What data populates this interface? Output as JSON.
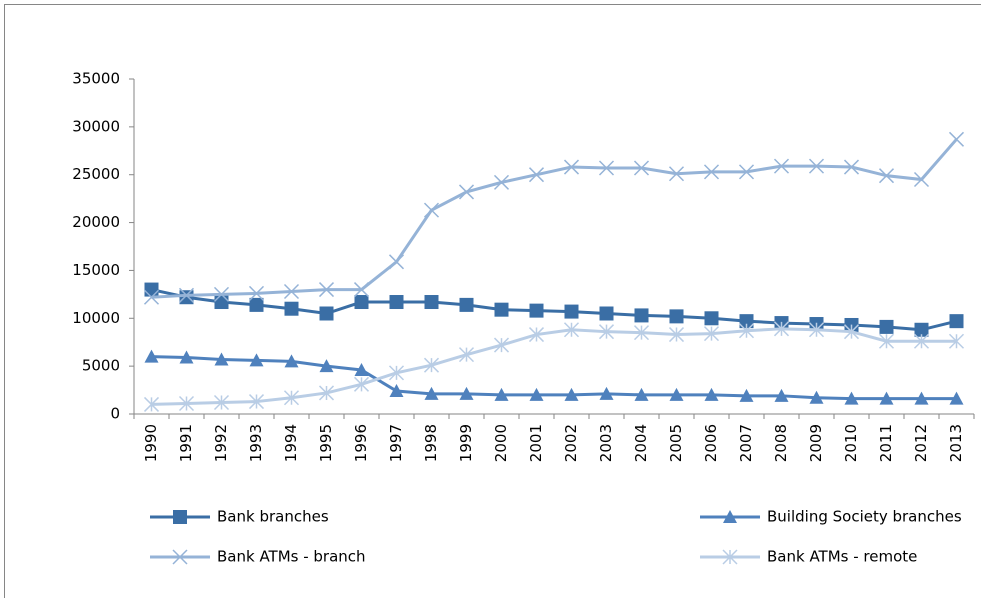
{
  "chart_data": {
    "type": "line",
    "categories": [
      "1990",
      "1991",
      "1992",
      "1993",
      "1994",
      "1995",
      "1996",
      "1997",
      "1998",
      "1999",
      "2000",
      "2001",
      "2002",
      "2003",
      "2004",
      "2005",
      "2006",
      "2007",
      "2008",
      "2009",
      "2010",
      "2011",
      "2012",
      "2013"
    ],
    "series": [
      {
        "name": "Bank branches",
        "color": "#3a6ea5",
        "marker": "square",
        "values": [
          13000,
          12200,
          11700,
          11400,
          11000,
          10500,
          11700,
          11700,
          11700,
          11400,
          10900,
          10800,
          10700,
          10500,
          10300,
          10200,
          10000,
          9700,
          9500,
          9400,
          9300,
          9100,
          8800,
          9700
        ]
      },
      {
        "name": "Building Society branches",
        "color": "#4f81bd",
        "marker": "triangle",
        "values": [
          6000,
          5900,
          5700,
          5600,
          5500,
          5000,
          4600,
          2400,
          2100,
          2100,
          2000,
          2000,
          2000,
          2100,
          2000,
          2000,
          2000,
          1900,
          1900,
          1700,
          1600,
          1600,
          1600,
          1600
        ]
      },
      {
        "name": "Bank ATMs - branch",
        "color": "#95b3d7",
        "marker": "x",
        "values": [
          12200,
          12400,
          12500,
          12600,
          12800,
          13000,
          13000,
          15900,
          21300,
          23200,
          24200,
          25000,
          25800,
          25700,
          25700,
          25100,
          25300,
          25300,
          25900,
          25900,
          25800,
          24900,
          24500,
          28700
        ]
      },
      {
        "name": "Bank ATMs - remote",
        "color": "#b9cde5",
        "marker": "star",
        "values": [
          1000,
          1100,
          1200,
          1300,
          1700,
          2200,
          3100,
          4300,
          5100,
          6200,
          7200,
          8300,
          8800,
          8600,
          8500,
          8300,
          8400,
          8700,
          8900,
          8800,
          8600,
          7600,
          7600,
          7600
        ]
      }
    ],
    "ylim": [
      0,
      35000
    ],
    "yticks": [
      0,
      5000,
      10000,
      15000,
      20000,
      25000,
      30000,
      35000
    ],
    "grid": false,
    "legend": "bottom"
  }
}
